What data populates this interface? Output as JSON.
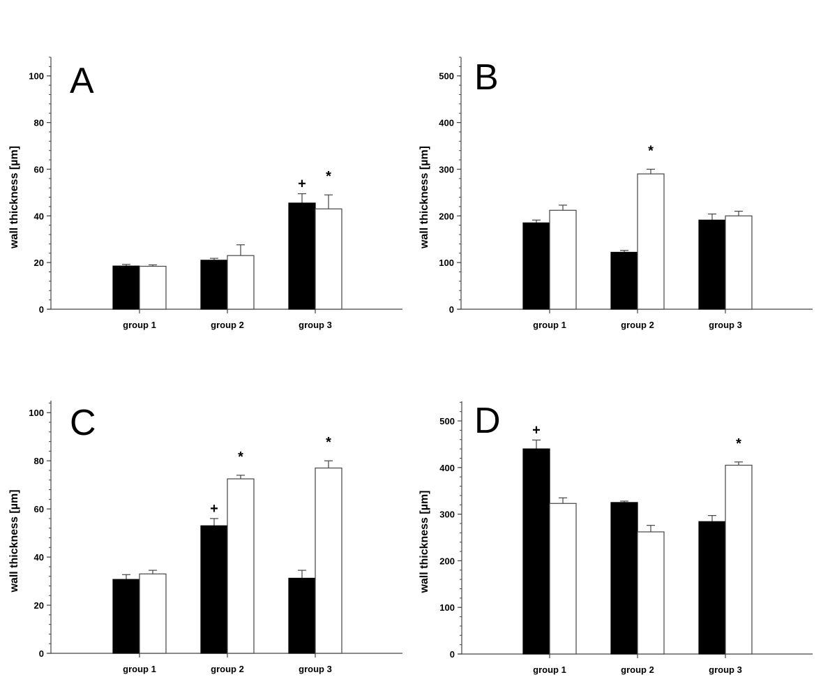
{
  "chart_data": [
    {
      "type": "bar",
      "panel_label": "A",
      "ylabel": "wall thickness [µm]",
      "xlabel": "",
      "ylim": [
        0,
        108
      ],
      "yticks": [
        0,
        20,
        40,
        60,
        80,
        100
      ],
      "minor_tick_step": 4,
      "categories": [
        "group 1",
        "group 2",
        "group 3"
      ],
      "grid": false,
      "series": [
        {
          "color": "#000000",
          "values": [
            18.5,
            21,
            45.5
          ],
          "error": [
            0.7,
            0.8,
            4
          ]
        },
        {
          "color": "#ffffff",
          "values": [
            18.4,
            23,
            43
          ],
          "error": [
            0.6,
            4.6,
            6
          ]
        }
      ],
      "annotations": [
        {
          "category": "group 3",
          "series": 0,
          "symbol": "+"
        },
        {
          "category": "group 3",
          "series": 1,
          "symbol": "*"
        }
      ]
    },
    {
      "type": "bar",
      "panel_label": "B",
      "ylabel": "wall thickness [µm]",
      "xlabel": "",
      "ylim": [
        0,
        540
      ],
      "yticks": [
        0,
        100,
        200,
        300,
        400,
        500
      ],
      "minor_tick_step": 20,
      "categories": [
        "group 1",
        "group 2",
        "group 3"
      ],
      "grid": false,
      "series": [
        {
          "color": "#000000",
          "values": [
            185,
            122,
            191
          ],
          "error": [
            6,
            4,
            13
          ]
        },
        {
          "color": "#ffffff",
          "values": [
            212,
            290,
            200
          ],
          "error": [
            11,
            10,
            10
          ]
        }
      ],
      "annotations": [
        {
          "category": "group 2",
          "series": 1,
          "symbol": "*"
        }
      ]
    },
    {
      "type": "bar",
      "panel_label": "C",
      "ylabel": "wall thickness [µm]",
      "xlabel": "",
      "ylim": [
        0,
        105
      ],
      "yticks": [
        0,
        20,
        40,
        60,
        80,
        100
      ],
      "minor_tick_step": 4,
      "categories": [
        "group 1",
        "group 2",
        "group 3"
      ],
      "grid": false,
      "series": [
        {
          "color": "#000000",
          "values": [
            30.7,
            53,
            31.2
          ],
          "error": [
            2,
            3,
            3.3
          ]
        },
        {
          "color": "#ffffff",
          "values": [
            33,
            72.5,
            77
          ],
          "error": [
            1.5,
            1.5,
            3
          ]
        }
      ],
      "annotations": [
        {
          "category": "group 2",
          "series": 0,
          "symbol": "+"
        },
        {
          "category": "group 2",
          "series": 1,
          "symbol": "*"
        },
        {
          "category": "group 3",
          "series": 1,
          "symbol": "*"
        }
      ]
    },
    {
      "type": "bar",
      "panel_label": "D",
      "ylabel": "wall thickness [µm]",
      "xlabel": "",
      "ylim": [
        0,
        542
      ],
      "yticks": [
        0,
        100,
        200,
        300,
        400,
        500
      ],
      "minor_tick_step": 20,
      "categories": [
        "group 1",
        "group 2",
        "group 3"
      ],
      "grid": false,
      "series": [
        {
          "color": "#000000",
          "values": [
            440,
            325,
            284
          ],
          "error": [
            19,
            3,
            13
          ]
        },
        {
          "color": "#ffffff",
          "values": [
            323,
            262,
            405
          ],
          "error": [
            12,
            14,
            7
          ]
        }
      ],
      "annotations": [
        {
          "category": "group 1",
          "series": 0,
          "symbol": "+"
        },
        {
          "category": "group 3",
          "series": 1,
          "symbol": "*"
        }
      ]
    }
  ]
}
